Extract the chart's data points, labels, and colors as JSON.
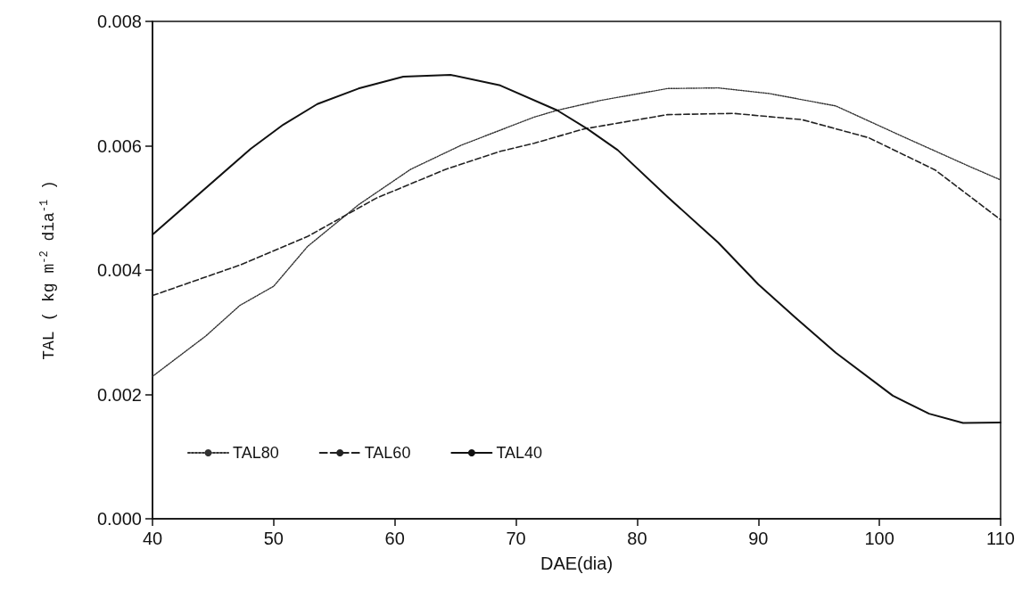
{
  "chart_data": {
    "type": "line",
    "xlabel": "DAE(dia)",
    "ylabel": "TAL ( kg m$^{-2}$ dia$^{-1}$ )",
    "xlim": [
      40,
      110
    ],
    "xticks": [
      40,
      50,
      60,
      70,
      80,
      90,
      100,
      110
    ],
    "ylim": [
      0,
      0.008
    ],
    "yticks": [
      {
        "value": 0,
        "label": "0.000"
      },
      {
        "value": 0.002,
        "label": "0.002"
      },
      {
        "value": 0.004,
        "label": "0.004"
      },
      {
        "value": 0.006,
        "label": "0.006"
      },
      {
        "value": 0.008,
        "label": "0.008"
      }
    ],
    "grid": false,
    "legend": "bottom left",
    "marker": "none",
    "series": [
      {
        "name": "TAL80",
        "color": "#333333",
        "line_style": "dotted",
        "x": [
          40,
          44.4,
          47.2,
          50,
          52.8,
          57,
          61.3,
          65.5,
          68.7,
          71.5,
          73.4,
          77,
          82.5,
          86.7,
          90.9,
          96.4,
          101.9,
          107.4,
          110
        ],
        "values": [
          0.00229,
          0.00294,
          0.00343,
          0.00374,
          0.00438,
          0.00505,
          0.00562,
          0.00601,
          0.00625,
          0.00646,
          0.00657,
          0.00673,
          0.00692,
          0.00693,
          0.00684,
          0.00664,
          0.00615,
          0.00567,
          0.00545
        ]
      },
      {
        "name": "TAL60",
        "color": "#222222",
        "line_style": "dashed",
        "x": [
          40,
          47.2,
          52.8,
          58.5,
          64.2,
          68.7,
          71.5,
          75.6,
          82.5,
          88,
          93.6,
          99.1,
          104.6,
          110
        ],
        "values": [
          0.00359,
          0.00408,
          0.00454,
          0.00516,
          0.00562,
          0.00591,
          0.00604,
          0.00627,
          0.0065,
          0.00652,
          0.00642,
          0.00613,
          0.00561,
          0.00481
        ]
      },
      {
        "name": "TAL40",
        "color": "#111111",
        "line_style": "solid",
        "x": [
          40,
          48.1,
          50.8,
          53.6,
          57,
          60.7,
          64.6,
          68.7,
          73.4,
          75.9,
          78.4,
          82.5,
          86.7,
          90,
          93.1,
          96.4,
          101.1,
          104.1,
          106.9,
          110
        ],
        "values": [
          0.00457,
          0.00595,
          0.00634,
          0.00667,
          0.00692,
          0.00711,
          0.00714,
          0.00697,
          0.00657,
          0.00627,
          0.00593,
          0.00518,
          0.00444,
          0.00377,
          0.00323,
          0.00267,
          0.00198,
          0.00169,
          0.00154,
          0.00155
        ]
      }
    ]
  }
}
